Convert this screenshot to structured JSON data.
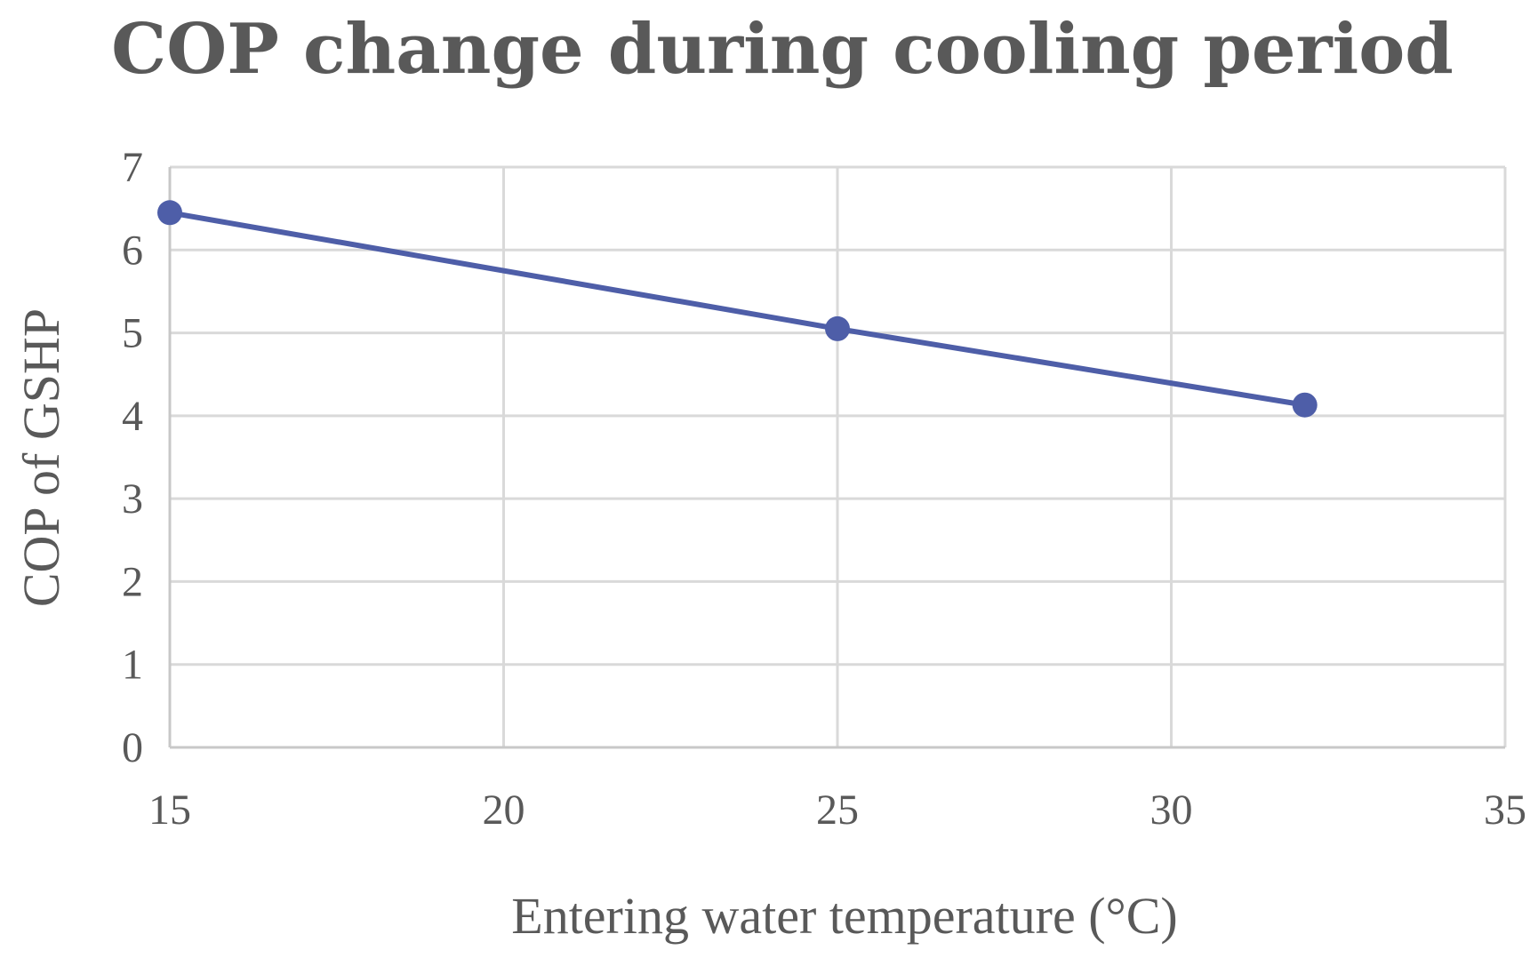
{
  "chart_data": {
    "type": "scatter",
    "title": "COP change during cooling period",
    "xlabel": "Entering water temperature (°C)",
    "ylabel": "COP of GSHP",
    "xlim": [
      15,
      35
    ],
    "ylim": [
      0,
      7
    ],
    "xticks": [
      15,
      20,
      25,
      30,
      35
    ],
    "yticks": [
      0,
      1,
      2,
      3,
      4,
      5,
      6,
      7
    ],
    "grid": true,
    "series": [
      {
        "name": "COP",
        "x": [
          15,
          25,
          32
        ],
        "y": [
          6.45,
          5.05,
          4.13
        ],
        "color": "#4e5ea8",
        "style": "line-with-markers"
      }
    ]
  }
}
